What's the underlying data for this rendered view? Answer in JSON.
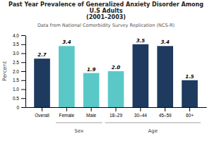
{
  "chart_data": {
    "type": "bar",
    "title": "Past Year Prevalence of Generalized Anxiety Disorder Among\nU.S Adults\n(2001–2003)",
    "subtitle": "Data from National Comorbidity Survey Replication (NCS-R)",
    "categories": [
      "Overall",
      "Female",
      "Male",
      "18–29",
      "30–44",
      "45–59",
      "60+"
    ],
    "values": [
      2.7,
      3.4,
      1.9,
      2.0,
      3.5,
      3.4,
      1.5
    ],
    "value_labels": [
      "2.7",
      "3.4",
      "1.9",
      "2.0",
      "3.5",
      "3.4",
      "1.5"
    ],
    "colors": [
      "#1e3a5f",
      "#5bc8c8",
      "#5bc8c8",
      "#5bc8c8",
      "#1e3a5f",
      "#1e3a5f",
      "#1e3a5f"
    ],
    "ylabel": "Percent",
    "ylim": [
      0,
      4
    ],
    "yticks": [
      0,
      0.5,
      {
        "value": 1,
        "label": "1.0"
      },
      1.5,
      {
        "value": 2,
        "label": "2.0"
      },
      2.5,
      {
        "value": 3,
        "label": "3.0"
      },
      3.5,
      {
        "value": 4,
        "label": "4.0"
      }
    ],
    "data_labels": true,
    "grid": false,
    "groups": [
      {
        "label": "Sex",
        "categories": [
          "Female",
          "Male"
        ]
      },
      {
        "label": "Age",
        "categories": [
          "18–29",
          "30–44",
          "45–59",
          "60+"
        ]
      }
    ]
  }
}
